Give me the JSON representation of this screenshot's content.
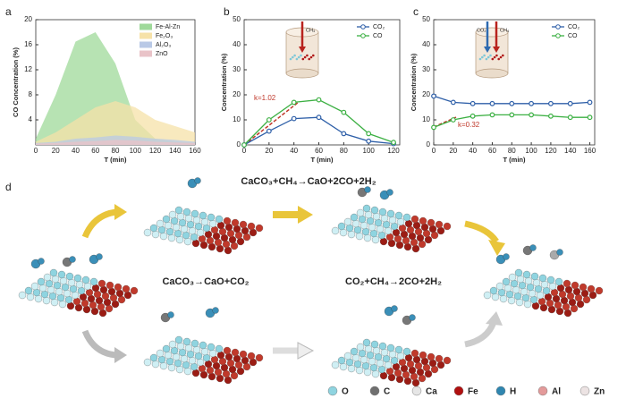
{
  "chart_data": [
    {
      "type": "area",
      "panel_label": "a",
      "xlabel": "T  (min)",
      "ylabel": "CO Concentration (%)",
      "x": [
        0,
        20,
        40,
        60,
        80,
        100,
        120,
        140,
        160
      ],
      "series": [
        {
          "name": "Fe-Al-Zn",
          "color": "#9fd99a",
          "values": [
            1,
            8,
            16.5,
            18,
            13,
            4,
            1,
            0.5,
            0.3
          ]
        },
        {
          "name": "Fe₂O₃",
          "color": "#f6e2a8",
          "values": [
            0.5,
            2,
            4,
            6,
            7,
            6,
            4,
            3,
            2
          ]
        },
        {
          "name": "Al₂O₃",
          "color": "#b9c9e6",
          "values": [
            0.3,
            0.5,
            1,
            1.2,
            1.5,
            1.3,
            1,
            0.8,
            0.5
          ]
        },
        {
          "name": "ZnO",
          "color": "#e9c3c8",
          "values": [
            0.2,
            0.3,
            0.5,
            0.6,
            0.8,
            0.7,
            0.5,
            0.4,
            0.3
          ]
        }
      ],
      "xlim": [
        0,
        160
      ],
      "xticks": [
        0,
        20,
        40,
        60,
        80,
        100,
        120,
        140,
        160
      ],
      "ylim": [
        0,
        20
      ],
      "yticks": [
        4,
        8,
        12,
        16,
        20
      ],
      "legend": "top-right"
    },
    {
      "type": "line",
      "panel_label": "b",
      "xlabel": "T (min)",
      "ylabel": "Concentration (%)",
      "annotation": "k=1.02",
      "inset_labels": [
        "CH₄"
      ],
      "x": [
        0,
        20,
        40,
        60,
        80,
        100,
        120
      ],
      "series": [
        {
          "name": "CO₂",
          "color": "#2e5fa8",
          "values": [
            0,
            5.5,
            10.5,
            11,
            4.5,
            1.5,
            0.5
          ]
        },
        {
          "name": "CO",
          "color": "#3cb043",
          "values": [
            0,
            10,
            17,
            18,
            13,
            4.5,
            1
          ]
        }
      ],
      "xlim": [
        0,
        125
      ],
      "xticks": [
        0,
        20,
        40,
        60,
        80,
        100,
        120
      ],
      "ylim": [
        0,
        50
      ],
      "yticks": [
        0,
        10,
        20,
        30,
        40,
        50
      ],
      "legend": "top-right"
    },
    {
      "type": "line",
      "panel_label": "c",
      "xlabel": "T (min)",
      "ylabel": "Concentration (%)",
      "annotation": "k=0.32",
      "inset_labels": [
        "CO₂",
        "CH₄"
      ],
      "x": [
        0,
        20,
        40,
        60,
        80,
        100,
        120,
        140,
        160
      ],
      "series": [
        {
          "name": "CO₂",
          "color": "#2e5fa8",
          "values": [
            19.5,
            17,
            16.5,
            16.5,
            16.5,
            16.5,
            16.5,
            16.5,
            17
          ]
        },
        {
          "name": "CO",
          "color": "#3cb043",
          "values": [
            7,
            10,
            11.5,
            12,
            12,
            12,
            11.5,
            11,
            11
          ]
        }
      ],
      "xlim": [
        0,
        165
      ],
      "xticks": [
        0,
        20,
        40,
        60,
        80,
        100,
        120,
        140,
        160
      ],
      "ylim": [
        0,
        50
      ],
      "yticks": [
        0,
        10,
        20,
        30,
        40,
        50
      ],
      "legend": "top-right"
    }
  ],
  "diagram": {
    "panel_label": "d",
    "equations": [
      "CaCO₃+CH₄→CaO+2CO+2H₂",
      "CaCO₃→CaO+CO₂",
      "CO₂+CH₄→2CO+2H₂"
    ],
    "legend": [
      "O",
      "C",
      "Ca",
      "Fe",
      "H",
      "Al",
      "Zn"
    ]
  }
}
